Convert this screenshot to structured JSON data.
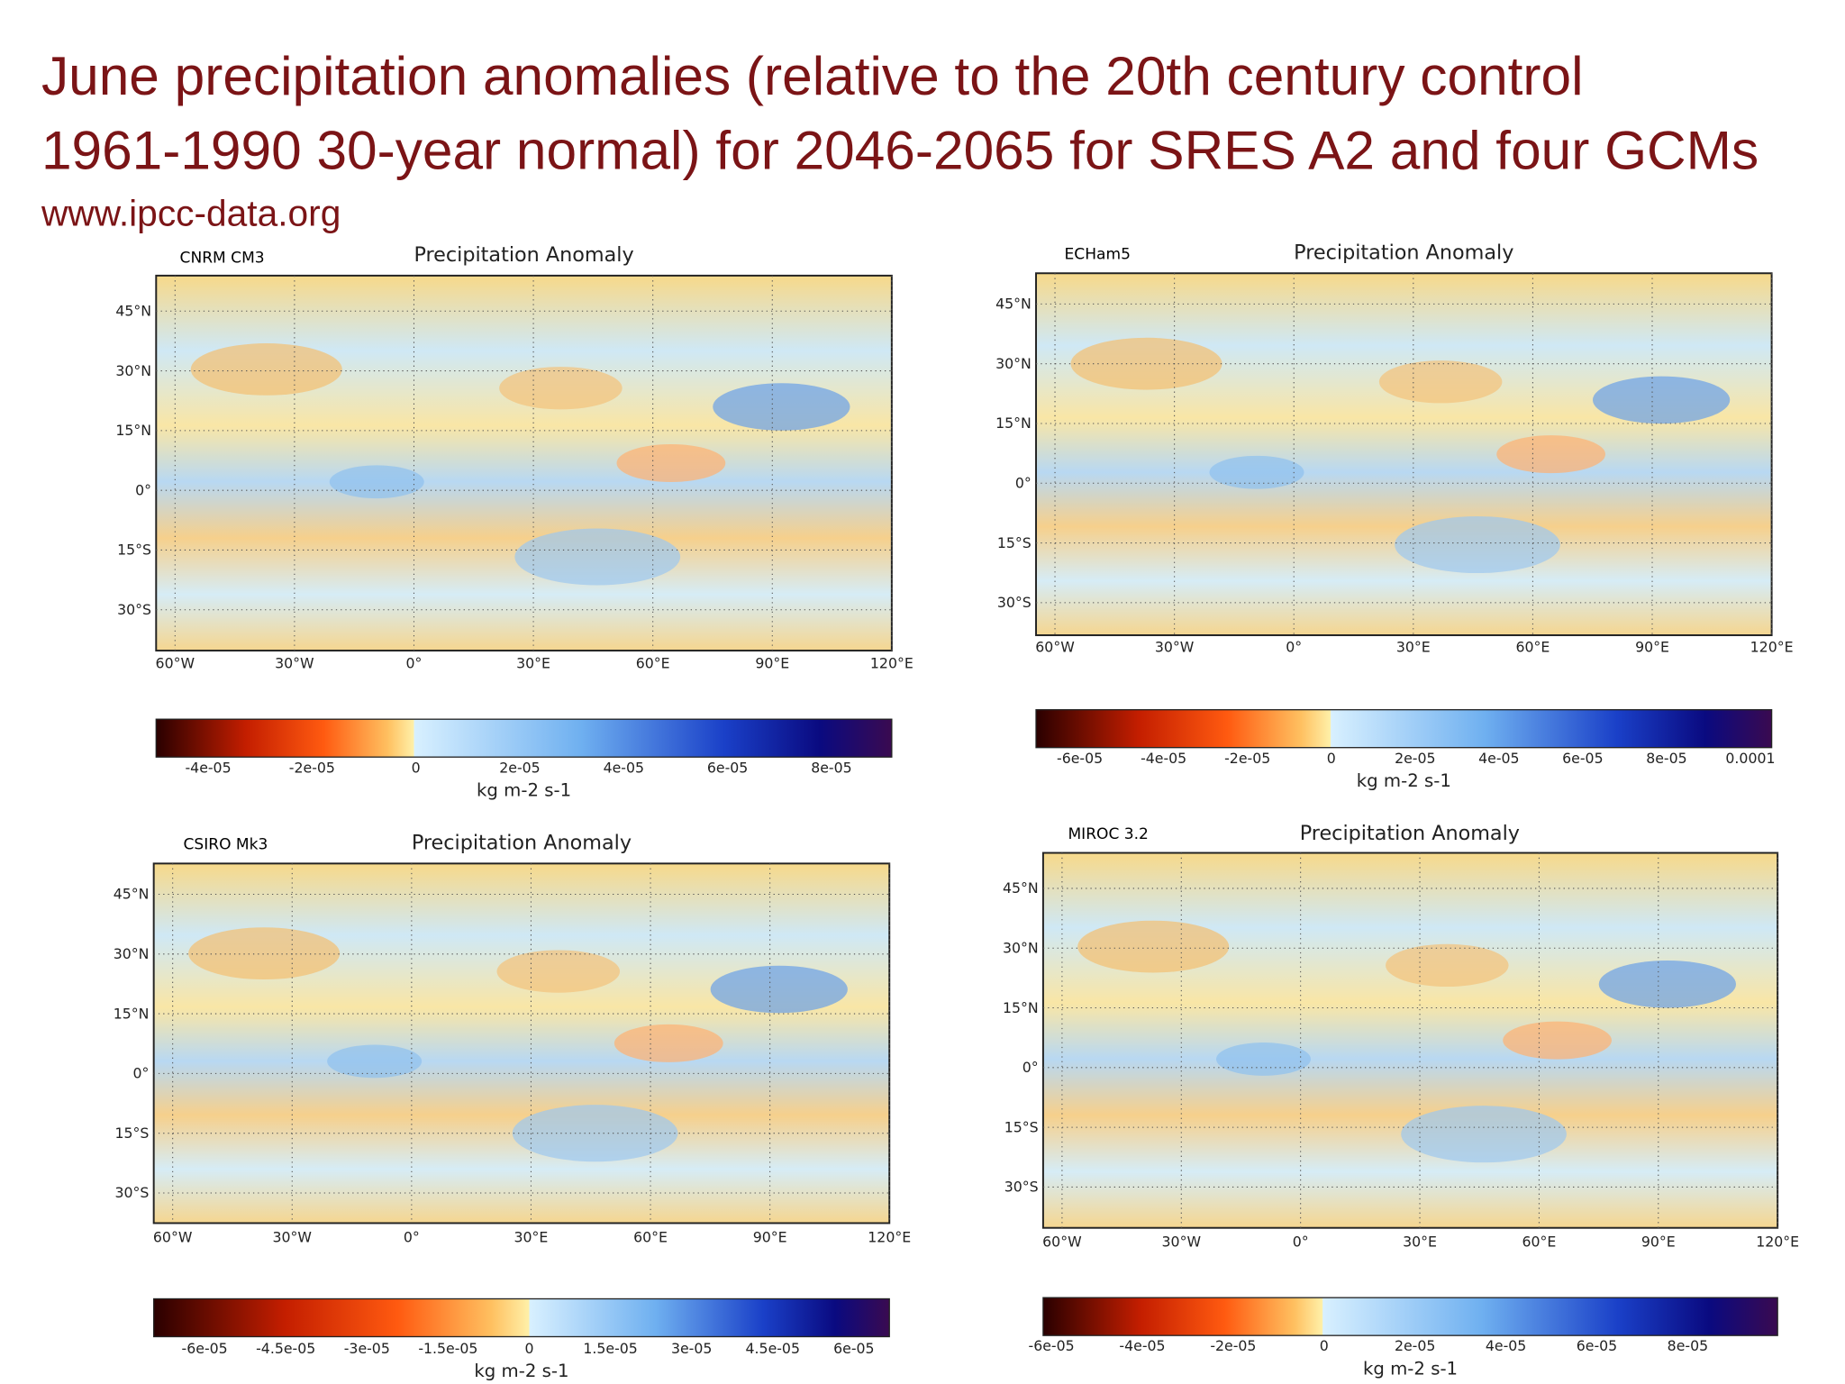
{
  "title_lines": [
    "June precipitation anomalies (relative to the 20th century control",
    "1961-1990 30-year normal) for 2046-2065 for SRES A2 and four GCMs"
  ],
  "url": "www.ipcc-data.org",
  "panels": [
    {
      "model": "CNRM CM3",
      "title": "Precipitation Anomaly",
      "lat_labels": [
        "45°N",
        "30°N",
        "15°N",
        "0°",
        "15°S",
        "30°S"
      ],
      "lon_labels": [
        "60°W",
        "30°W",
        "0°",
        "30°E",
        "60°E",
        "90°E",
        "120°E"
      ],
      "colorbar_ticks": [
        "-4e-05",
        "-2e-05",
        "0",
        "2e-05",
        "4e-05",
        "6e-05",
        "8e-05"
      ],
      "units": "kg m-2 s-1"
    },
    {
      "model": "ECHam5",
      "title": "Precipitation Anomaly",
      "lat_labels": [
        "45°N",
        "30°N",
        "15°N",
        "0°",
        "15°S",
        "30°S"
      ],
      "lon_labels": [
        "60°W",
        "30°W",
        "0°",
        "30°E",
        "60°E",
        "90°E",
        "120°E"
      ],
      "colorbar_ticks": [
        "-6e-05",
        "-4e-05",
        "-2e-05",
        "0",
        "2e-05",
        "4e-05",
        "6e-05",
        "8e-05",
        "0.0001"
      ],
      "units": "kg m-2 s-1"
    },
    {
      "model": "CSIRO Mk3",
      "title": "Precipitation Anomaly",
      "lat_labels": [
        "45°N",
        "30°N",
        "15°N",
        "0°",
        "15°S",
        "30°S"
      ],
      "lon_labels": [
        "60°W",
        "30°W",
        "0°",
        "30°E",
        "60°E",
        "90°E",
        "120°E"
      ],
      "colorbar_ticks": [
        "-6e-05",
        "-4.5e-05",
        "-3e-05",
        "-1.5e-05",
        "0",
        "1.5e-05",
        "3e-05",
        "4.5e-05",
        "6e-05"
      ],
      "units": "kg m-2 s-1"
    },
    {
      "model": "MIROC 3.2",
      "title": "Precipitation Anomaly",
      "lat_labels": [
        "45°N",
        "30°N",
        "15°N",
        "0°",
        "15°S",
        "30°S"
      ],
      "lon_labels": [
        "60°W",
        "30°W",
        "0°",
        "30°E",
        "60°E",
        "90°E",
        "120°E"
      ],
      "colorbar_ticks": [
        "-6e-05",
        "-4e-05",
        "-2e-05",
        "0",
        "2e-05",
        "4e-05",
        "6e-05",
        "8e-05"
      ],
      "units": "kg m-2 s-1"
    }
  ]
}
